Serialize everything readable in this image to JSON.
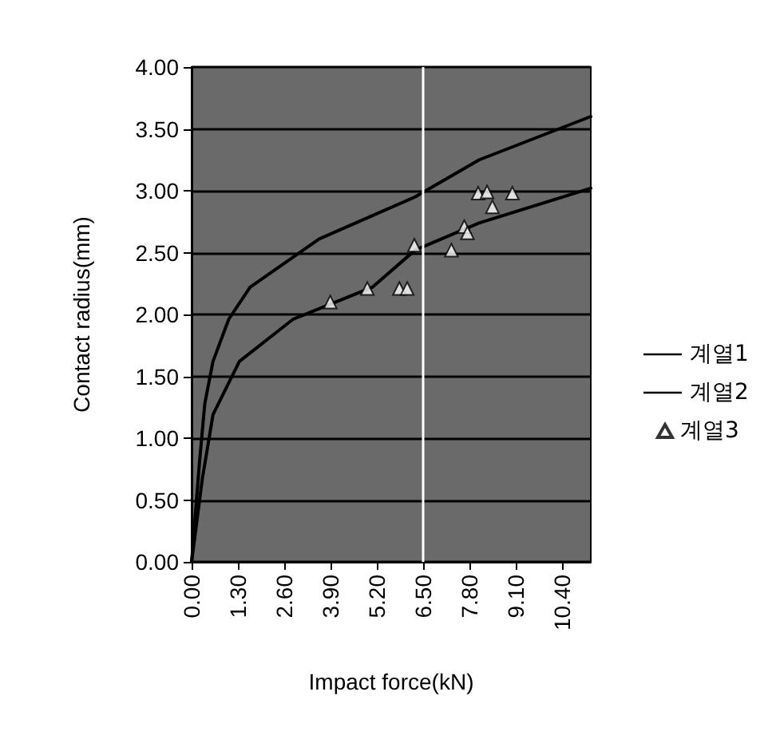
{
  "chart_data": {
    "type": "line",
    "xlabel": "Impact force(kN)",
    "ylabel": "Contact radius(mm)",
    "xlim": [
      0,
      11.2
    ],
    "xticks": [
      {
        "value": 0,
        "label": "0.00"
      },
      {
        "value": 1.3,
        "label": "1.30"
      },
      {
        "value": 2.6,
        "label": "2.60"
      },
      {
        "value": 3.9,
        "label": "3.90"
      },
      {
        "value": 5.2,
        "label": "5.20"
      },
      {
        "value": 6.5,
        "label": "6.50"
      },
      {
        "value": 7.8,
        "label": "7.80"
      },
      {
        "value": 9.1,
        "label": "9.10"
      },
      {
        "value": 10.4,
        "label": "10.40"
      }
    ],
    "ylim": [
      0,
      4
    ],
    "yticks": [
      {
        "value": 0,
        "label": "0.00"
      },
      {
        "value": 0.5,
        "label": "0.50"
      },
      {
        "value": 1,
        "label": "1.00"
      },
      {
        "value": 1.5,
        "label": "1.50"
      },
      {
        "value": 2,
        "label": "2.00"
      },
      {
        "value": 2.5,
        "label": "2.50"
      },
      {
        "value": 3,
        "label": "3.00"
      },
      {
        "value": 3.5,
        "label": "3.50"
      },
      {
        "value": 4,
        "label": "4.00"
      }
    ],
    "grid": "y",
    "legend": "right",
    "ref_lines": [
      {
        "axis": "x",
        "value": 6.5,
        "color": "#ffffff"
      }
    ],
    "series": [
      {
        "name": "계열1",
        "color": "#000000",
        "marker": "none",
        "x": [
          0,
          0.22,
          0.37,
          0.6,
          1.04,
          1.64,
          3.58,
          6.27,
          8.07,
          11.2
        ],
        "values": [
          0,
          0.8,
          1.28,
          1.62,
          1.96,
          2.22,
          2.61,
          2.95,
          3.25,
          3.6
        ]
      },
      {
        "name": "계열2",
        "color": "#000000",
        "marker": "none",
        "x": [
          0,
          0.3,
          0.6,
          1.34,
          2.84,
          5.07,
          6.27,
          8.07,
          11.2
        ],
        "values": [
          0,
          0.67,
          1.19,
          1.62,
          1.96,
          2.22,
          2.52,
          2.74,
          3.02
        ]
      },
      {
        "name": "계열3",
        "type": "scatter",
        "color": "#ffffff",
        "marker": "triangle",
        "x": [
          3.89,
          4.93,
          5.83,
          6.05,
          6.25,
          7.29,
          7.65,
          7.74,
          8.04,
          8.29,
          8.44,
          9.0
        ],
        "values": [
          2.1,
          2.21,
          2.21,
          2.21,
          2.56,
          2.52,
          2.71,
          2.66,
          2.98,
          2.99,
          2.87,
          2.98
        ]
      }
    ]
  }
}
